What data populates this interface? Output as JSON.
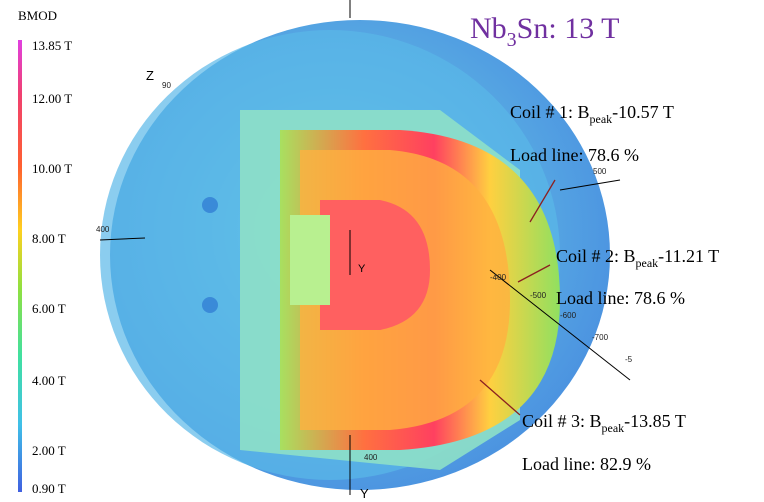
{
  "colorbar": {
    "title": "BMOD",
    "labels": [
      "13.85 T",
      "12.00 T",
      "10.00 T",
      "8.00 T",
      "6.00 T",
      "4.00 T",
      "2.00 T",
      "0.90 T"
    ]
  },
  "title": {
    "parts": [
      "Nb",
      "3",
      "Sn: 13 T"
    ]
  },
  "coils": [
    {
      "label_parts": [
        "Coil # 1: B",
        "peak",
        "-10.57 T"
      ],
      "load_line": "Load line: 78.6 %"
    },
    {
      "label_parts": [
        "Coil # 2: B",
        "peak",
        "-11.21 T"
      ],
      "load_line": "Load line: 78.6 %"
    },
    {
      "label_parts": [
        "Coil # 3: B",
        "peak",
        "-13.85 T"
      ],
      "load_line": "Load line: 82.9 %"
    }
  ],
  "axes": {
    "z_label": "Z",
    "y_label_center": "Y",
    "y_label_bottom": "Y",
    "tick_labels": [
      "90",
      "400",
      "500",
      "-400",
      "-500",
      "-600",
      "-700",
      "-5",
      "400"
    ]
  }
}
